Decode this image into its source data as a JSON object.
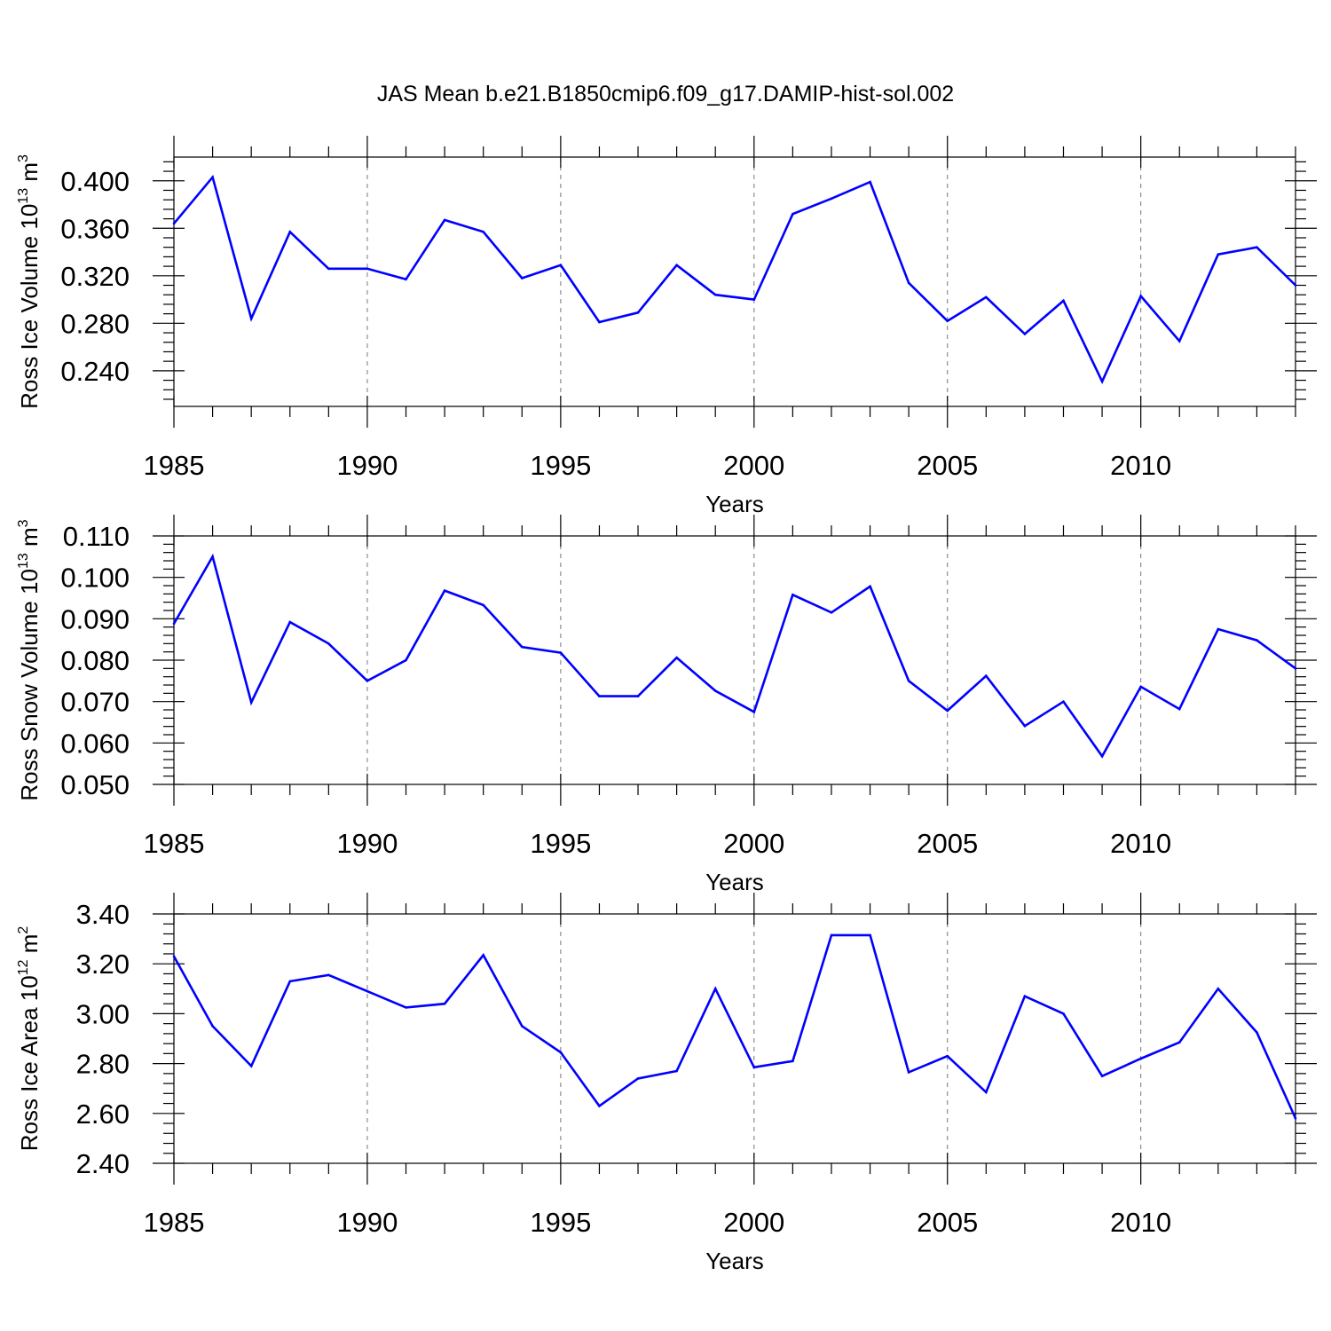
{
  "title": "JAS Mean b.e21.B1850cmip6.f09_g17.DAMIP-hist-sol.002",
  "colors": {
    "line": "#0000ff",
    "frame": "#000000",
    "grid": "#777777"
  },
  "chart_data": [
    {
      "type": "line",
      "xlabel": "Years",
      "ylabel": {
        "text": "Ross Ice Volume 10",
        "exp": "13",
        "unit": " m",
        "unit_exp": "3"
      },
      "xlim": [
        1985,
        2014
      ],
      "ylim": [
        0.21,
        0.42
      ],
      "xticks": [
        1985,
        1990,
        1995,
        2000,
        2005,
        2010
      ],
      "xtick_labels": [
        "1985",
        "1990",
        "1995",
        "2000",
        "2005",
        "2010"
      ],
      "yticks": [
        0.24,
        0.28,
        0.32,
        0.36,
        0.4
      ],
      "ytick_labels": [
        "0.240",
        "0.280",
        "0.320",
        "0.360",
        "0.400"
      ],
      "grid": "dashed vertical at major x ticks",
      "series": [
        {
          "x": [
            1985,
            1986,
            1987,
            1988,
            1989,
            1990,
            1991,
            1992,
            1993,
            1994,
            1995,
            1996,
            1997,
            1998,
            1999,
            2000,
            2001,
            2002,
            2003,
            2004,
            2005,
            2006,
            2007,
            2008,
            2009,
            2010,
            2011,
            2012,
            2013,
            2014
          ],
          "values": [
            0.364,
            0.403,
            0.284,
            0.357,
            0.326,
            0.326,
            0.317,
            0.367,
            0.357,
            0.318,
            0.329,
            0.281,
            0.289,
            0.329,
            0.304,
            0.3,
            0.372,
            0.385,
            0.399,
            0.314,
            0.282,
            0.302,
            0.271,
            0.299,
            0.231,
            0.303,
            0.265,
            0.338,
            0.344,
            0.312
          ]
        }
      ]
    },
    {
      "type": "line",
      "xlabel": "Years",
      "ylabel": {
        "text": "Ross Snow Volume 10",
        "exp": "13",
        "unit": " m",
        "unit_exp": "3"
      },
      "xlim": [
        1985,
        2014
      ],
      "ylim": [
        0.05,
        0.11
      ],
      "xticks": [
        1985,
        1990,
        1995,
        2000,
        2005,
        2010
      ],
      "xtick_labels": [
        "1985",
        "1990",
        "1995",
        "2000",
        "2005",
        "2010"
      ],
      "yticks": [
        0.05,
        0.06,
        0.07,
        0.08,
        0.09,
        0.1,
        0.11
      ],
      "ytick_labels": [
        "0.050",
        "0.060",
        "0.070",
        "0.080",
        "0.090",
        "0.100",
        "0.110"
      ],
      "grid": "dashed vertical at major x ticks",
      "series": [
        {
          "x": [
            1985,
            1986,
            1987,
            1988,
            1989,
            1990,
            1991,
            1992,
            1993,
            1994,
            1995,
            1996,
            1997,
            1998,
            1999,
            2000,
            2001,
            2002,
            2003,
            2004,
            2005,
            2006,
            2007,
            2008,
            2009,
            2010,
            2011,
            2012,
            2013,
            2014
          ],
          "values": [
            0.0888,
            0.105,
            0.0698,
            0.0892,
            0.084,
            0.075,
            0.08,
            0.0968,
            0.0933,
            0.0832,
            0.0818,
            0.0713,
            0.0713,
            0.0806,
            0.0726,
            0.0675,
            0.0958,
            0.0915,
            0.0978,
            0.075,
            0.0678,
            0.0762,
            0.0641,
            0.07,
            0.0568,
            0.0736,
            0.0682,
            0.0875,
            0.0848,
            0.078
          ]
        }
      ]
    },
    {
      "type": "line",
      "xlabel": "Years",
      "ylabel": {
        "text": "Ross Ice Area 10",
        "exp": "12",
        "unit": " m",
        "unit_exp": "2"
      },
      "xlim": [
        1985,
        2014
      ],
      "ylim": [
        2.4,
        3.4
      ],
      "xticks": [
        1985,
        1990,
        1995,
        2000,
        2005,
        2010
      ],
      "xtick_labels": [
        "1985",
        "1990",
        "1995",
        "2000",
        "2005",
        "2010"
      ],
      "yticks": [
        2.4,
        2.6,
        2.8,
        3.0,
        3.2,
        3.4
      ],
      "ytick_labels": [
        "2.40",
        "2.60",
        "2.80",
        "3.00",
        "3.20",
        "3.40"
      ],
      "grid": "dashed vertical at major x ticks",
      "series": [
        {
          "x": [
            1985,
            1986,
            1987,
            1988,
            1989,
            1990,
            1991,
            1992,
            1993,
            1994,
            1995,
            1996,
            1997,
            1998,
            1999,
            2000,
            2001,
            2002,
            2003,
            2004,
            2005,
            2006,
            2007,
            2008,
            2009,
            2010,
            2011,
            2012,
            2013,
            2014
          ],
          "values": [
            3.23,
            2.95,
            2.79,
            3.13,
            3.155,
            3.09,
            3.025,
            3.04,
            3.235,
            2.95,
            2.845,
            2.63,
            2.74,
            2.77,
            3.1,
            2.785,
            2.81,
            3.315,
            3.315,
            2.765,
            2.83,
            2.685,
            3.07,
            3.0,
            2.75,
            2.82,
            2.885,
            3.1,
            2.925,
            2.58
          ]
        }
      ]
    }
  ]
}
